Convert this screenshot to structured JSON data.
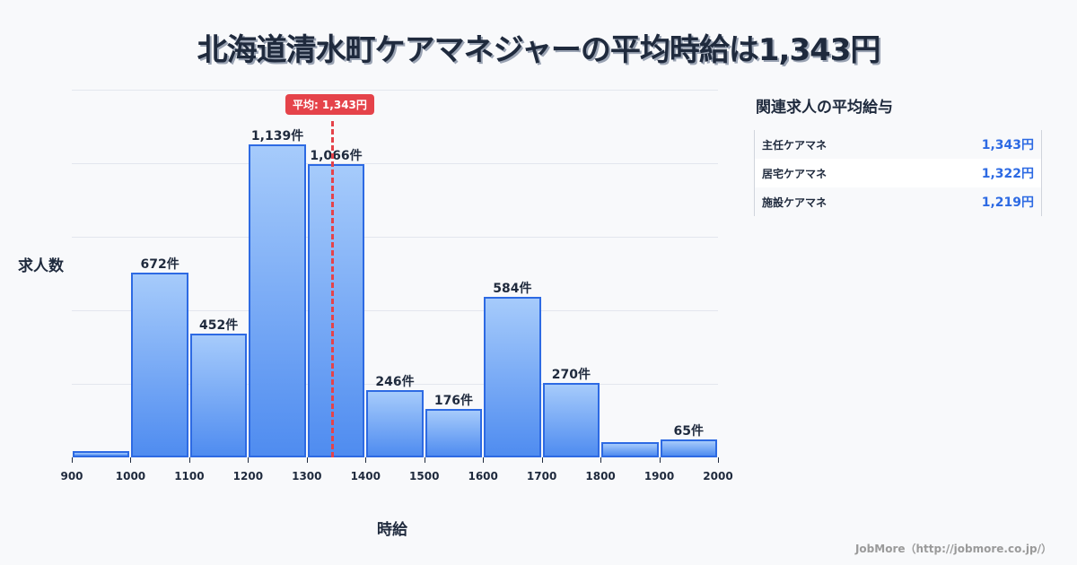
{
  "title": "北海道清水町ケアマネジャーの平均時給は1,343円",
  "chart_data": {
    "type": "bar",
    "title": "北海道清水町ケアマネジャーの平均時給は1,343円",
    "xlabel": "時給",
    "ylabel": "求人数",
    "x_ticks": [
      "900",
      "1000",
      "1100",
      "1200",
      "1300",
      "1400",
      "1500",
      "1600",
      "1700",
      "1800",
      "1900",
      "2000"
    ],
    "categories": [
      "900-1000",
      "1000-1100",
      "1100-1200",
      "1200-1300",
      "1300-1400",
      "1400-1500",
      "1500-1600",
      "1600-1700",
      "1700-1800",
      "1800-1900",
      "1900-2000"
    ],
    "values": [
      23,
      672,
      452,
      1139,
      1066,
      246,
      176,
      584,
      270,
      55,
      65
    ],
    "labels": [
      "",
      "672件",
      "452件",
      "1,139件",
      "1,066件",
      "246件",
      "176件",
      "584件",
      "270件",
      "",
      "65件"
    ],
    "ylim": [
      0,
      1340
    ],
    "grid": true,
    "average": {
      "value": 1343,
      "label": "平均: 1,343円",
      "color": "#e5434a"
    },
    "bar_color": "#4f8cf0",
    "bar_border": "#2d6ae3"
  },
  "side": {
    "title": "関連求人の平均給与",
    "rows": [
      {
        "name": "主任ケアマネ",
        "value": "1,343円"
      },
      {
        "name": "居宅ケアマネ",
        "value": "1,322円"
      },
      {
        "name": "施設ケアマネ",
        "value": "1,219円"
      }
    ]
  },
  "footer": "JobMore（http://jobmore.co.jp/）"
}
